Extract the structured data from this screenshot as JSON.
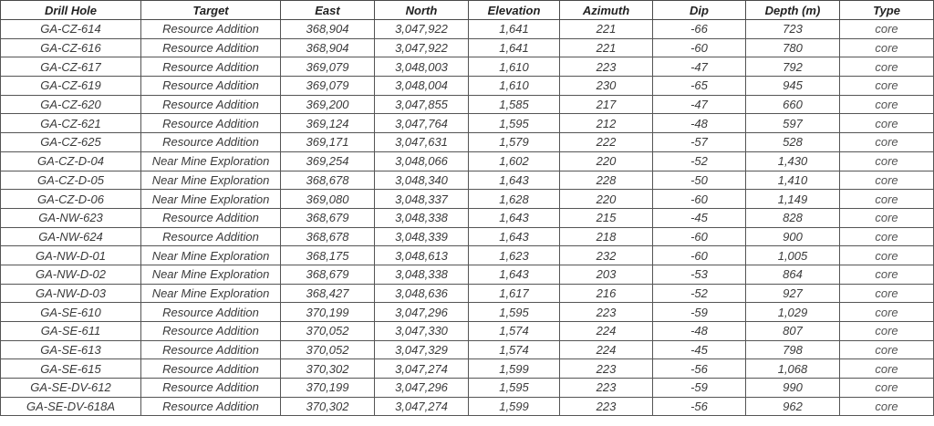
{
  "table": {
    "headers": [
      "Drill Hole",
      "Target",
      "East",
      "North",
      "Elevation",
      "Azimuth",
      "Dip",
      "Depth (m)",
      "Type"
    ],
    "rows": [
      [
        "GA-CZ-614",
        "Resource Addition",
        "368,904",
        "3,047,922",
        "1,641",
        "221",
        "-66",
        "723",
        "core"
      ],
      [
        "GA-CZ-616",
        "Resource Addition",
        "368,904",
        "3,047,922",
        "1,641",
        "221",
        "-60",
        "780",
        "core"
      ],
      [
        "GA-CZ-617",
        "Resource Addition",
        "369,079",
        "3,048,003",
        "1,610",
        "223",
        "-47",
        "792",
        "core"
      ],
      [
        "GA-CZ-619",
        "Resource Addition",
        "369,079",
        "3,048,004",
        "1,610",
        "230",
        "-65",
        "945",
        "core"
      ],
      [
        "GA-CZ-620",
        "Resource Addition",
        "369,200",
        "3,047,855",
        "1,585",
        "217",
        "-47",
        "660",
        "core"
      ],
      [
        "GA-CZ-621",
        "Resource Addition",
        "369,124",
        "3,047,764",
        "1,595",
        "212",
        "-48",
        "597",
        "core"
      ],
      [
        "GA-CZ-625",
        "Resource Addition",
        "369,171",
        "3,047,631",
        "1,579",
        "222",
        "-57",
        "528",
        "core"
      ],
      [
        "GA-CZ-D-04",
        "Near Mine Exploration",
        "369,254",
        "3,048,066",
        "1,602",
        "220",
        "-52",
        "1,430",
        "core"
      ],
      [
        "GA-CZ-D-05",
        "Near Mine Exploration",
        "368,678",
        "3,048,340",
        "1,643",
        "228",
        "-50",
        "1,410",
        "core"
      ],
      [
        "GA-CZ-D-06",
        "Near Mine Exploration",
        "369,080",
        "3,048,337",
        "1,628",
        "220",
        "-60",
        "1,149",
        "core"
      ],
      [
        "GA-NW-623",
        "Resource Addition",
        "368,679",
        "3,048,338",
        "1,643",
        "215",
        "-45",
        "828",
        "core"
      ],
      [
        "GA-NW-624",
        "Resource Addition",
        "368,678",
        "3,048,339",
        "1,643",
        "218",
        "-60",
        "900",
        "core"
      ],
      [
        "GA-NW-D-01",
        "Near Mine Exploration",
        "368,175",
        "3,048,613",
        "1,623",
        "232",
        "-60",
        "1,005",
        "core"
      ],
      [
        "GA-NW-D-02",
        "Near Mine Exploration",
        "368,679",
        "3,048,338",
        "1,643",
        "203",
        "-53",
        "864",
        "core"
      ],
      [
        "GA-NW-D-03",
        "Near Mine Exploration",
        "368,427",
        "3,048,636",
        "1,617",
        "216",
        "-52",
        "927",
        "core"
      ],
      [
        "GA-SE-610",
        "Resource Addition",
        "370,199",
        "3,047,296",
        "1,595",
        "223",
        "-59",
        "1,029",
        "core"
      ],
      [
        "GA-SE-611",
        "Resource Addition",
        "370,052",
        "3,047,330",
        "1,574",
        "224",
        "-48",
        "807",
        "core"
      ],
      [
        "GA-SE-613",
        "Resource Addition",
        "370,052",
        "3,047,329",
        "1,574",
        "224",
        "-45",
        "798",
        "core"
      ],
      [
        "GA-SE-615",
        "Resource Addition",
        "370,302",
        "3,047,274",
        "1,599",
        "223",
        "-56",
        "1,068",
        "core"
      ],
      [
        "GA-SE-DV-612",
        "Resource Addition",
        "370,199",
        "3,047,296",
        "1,595",
        "223",
        "-59",
        "990",
        "core"
      ],
      [
        "GA-SE-DV-618A",
        "Resource Addition",
        "370,302",
        "3,047,274",
        "1,599",
        "223",
        "-56",
        "962",
        "core"
      ]
    ]
  }
}
